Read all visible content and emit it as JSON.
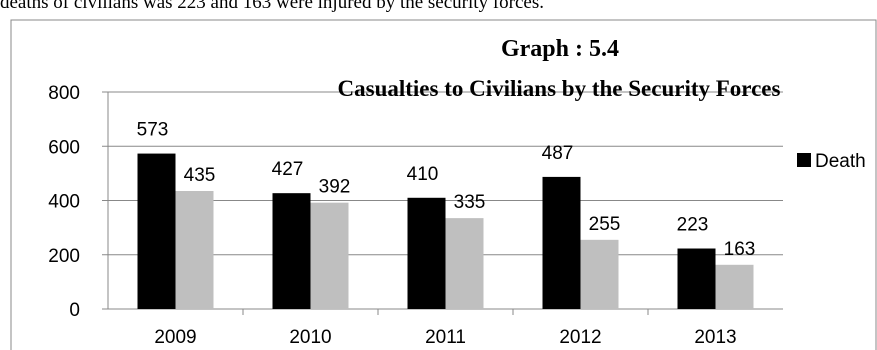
{
  "intro_text": "deaths of civilians was 223 and 163 were injured by the security forces.",
  "chart_data": {
    "type": "bar",
    "title": "Graph : 5.4",
    "subtitle": "Casualties to Civilians by the Security Forces",
    "categories": [
      "2009",
      "2010",
      "2011",
      "2012",
      "2013"
    ],
    "series": [
      {
        "name": "Death",
        "values": [
          573,
          427,
          410,
          487,
          223
        ],
        "color": "#000000"
      },
      {
        "name": "",
        "values": [
          435,
          392,
          335,
          255,
          163
        ],
        "color": "#bfbfbf"
      }
    ],
    "ylim": [
      0,
      800
    ],
    "yticks": [
      "0",
      "200",
      "400",
      "600",
      "800"
    ],
    "grid": true,
    "legend": "right",
    "xlabel": "",
    "ylabel": ""
  }
}
